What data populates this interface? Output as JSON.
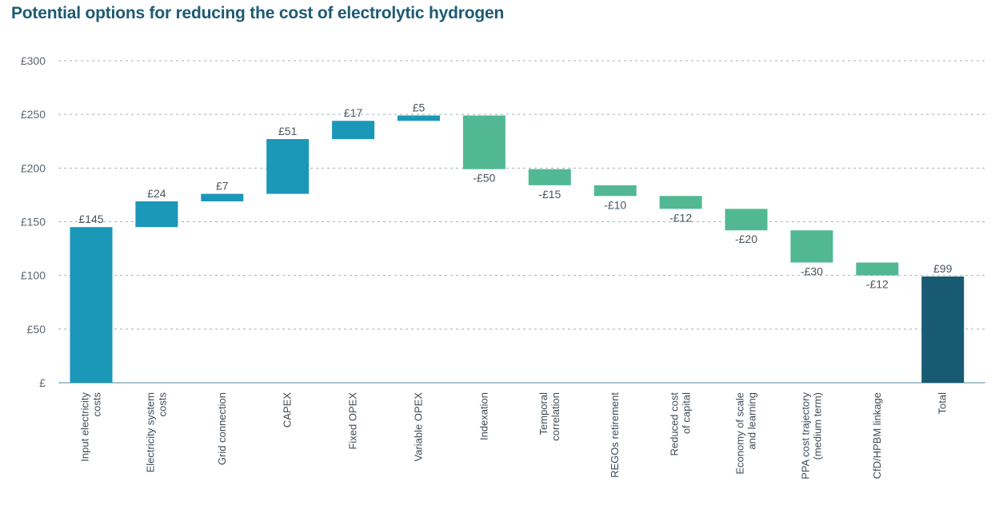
{
  "chart_data": {
    "type": "waterfall",
    "title": "Potential options for reducing the cost of electrolytic hydrogen",
    "categories": [
      [
        "Input electricity",
        "costs"
      ],
      [
        "Electricity system",
        "costs"
      ],
      [
        "Grid connection"
      ],
      [
        "CAPEX"
      ],
      [
        "Fixed OPEX"
      ],
      [
        "Variable OPEX"
      ],
      [
        "Indexation"
      ],
      [
        "Temporal",
        "correlation"
      ],
      [
        "REGOs retirement"
      ],
      [
        "Reduced cost",
        "of capital"
      ],
      [
        "Economy of scale",
        "and learning"
      ],
      [
        "PPA cost trajectory",
        "(medium term)"
      ],
      [
        "CfD/HPBM linkage"
      ],
      [
        "Total"
      ]
    ],
    "values": [
      145,
      24,
      7,
      51,
      17,
      5,
      -50,
      -15,
      -10,
      -12,
      -20,
      -30,
      -12,
      99
    ],
    "labels": [
      "£145",
      "£24",
      "£7",
      "£51",
      "£17",
      "£5",
      "-£50",
      "-£15",
      "-£10",
      "-£12",
      "-£20",
      "-£30",
      "-£12",
      "£99"
    ],
    "kinds": [
      "start",
      "increase",
      "increase",
      "increase",
      "increase",
      "increase",
      "decrease",
      "decrease",
      "decrease",
      "decrease",
      "decrease",
      "decrease",
      "decrease",
      "total"
    ],
    "yticks": [
      0,
      50,
      100,
      150,
      200,
      250,
      300
    ],
    "ytick_labels": [
      "£",
      "£50",
      "£100",
      "£150",
      "£200",
      "£250",
      "£300"
    ],
    "ylim": [
      0,
      300
    ],
    "grid": true,
    "colors": {
      "increase": "#1b97b8",
      "decrease": "#52b894",
      "total": "#185a72",
      "grid": "#9fb3bd",
      "axis": "#8fb0bf"
    }
  }
}
